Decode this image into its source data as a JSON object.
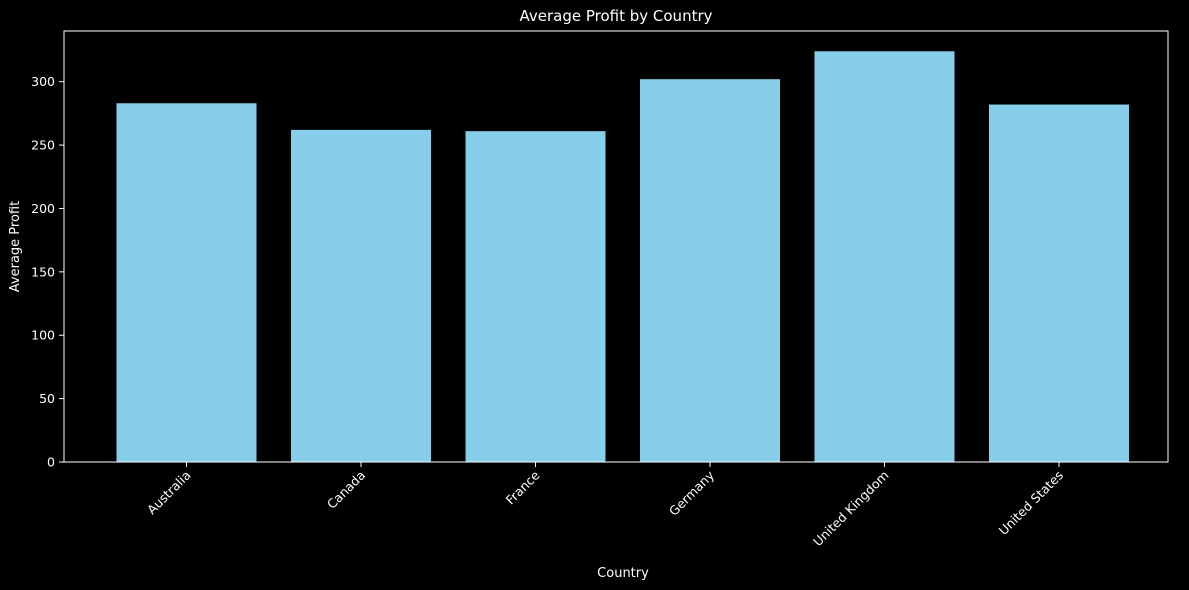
{
  "chart_data": {
    "type": "bar",
    "title": "Average Profit by Country",
    "xlabel": "Country",
    "ylabel": "Average Profit",
    "categories": [
      "Australia",
      "Canada",
      "France",
      "Germany",
      "United Kingdom",
      "United States"
    ],
    "values": [
      283,
      262,
      261,
      302,
      324,
      282
    ],
    "ylim": [
      0,
      340
    ],
    "yticks": [
      0,
      50,
      100,
      150,
      200,
      250,
      300
    ],
    "x_tick_rotation_deg": 45,
    "grid": false,
    "legend": "none",
    "colors": {
      "background": "#000000",
      "bar": "#87ceeb",
      "axis": "#ffffff",
      "text": "#ffffff"
    }
  }
}
